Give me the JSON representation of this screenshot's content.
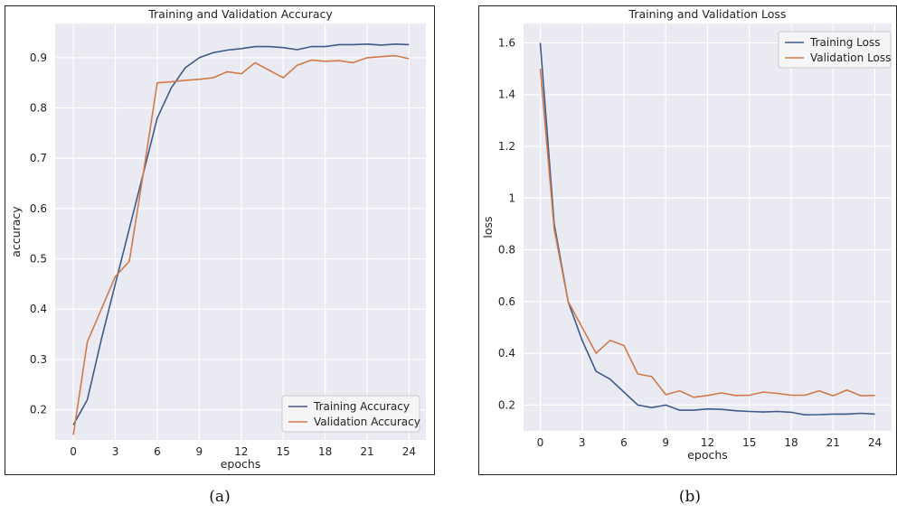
{
  "chart_data": [
    {
      "type": "line",
      "title": "Training and Validation Accuracy",
      "xlabel": "epochs",
      "ylabel": "accuracy",
      "xlim": [
        -1.3,
        25.2
      ],
      "ylim": [
        0.14,
        0.968
      ],
      "xticks": [
        0,
        3,
        6,
        9,
        12,
        15,
        18,
        21,
        24
      ],
      "yticks": [
        0.2,
        0.3,
        0.4,
        0.5,
        0.6,
        0.7,
        0.8,
        0.9
      ],
      "grid": true,
      "legend_position": "lower-right",
      "x": [
        0,
        1,
        2,
        3,
        4,
        5,
        6,
        7,
        8,
        9,
        10,
        11,
        12,
        13,
        14,
        15,
        16,
        17,
        18,
        19,
        20,
        21,
        22,
        23,
        24
      ],
      "series": [
        {
          "name": "Training Accuracy",
          "color": "#3f5a8a",
          "values": [
            0.17,
            0.22,
            0.34,
            0.45,
            0.56,
            0.67,
            0.78,
            0.84,
            0.88,
            0.9,
            0.91,
            0.915,
            0.918,
            0.922,
            0.922,
            0.92,
            0.916,
            0.922,
            0.922,
            0.926,
            0.926,
            0.927,
            0.925,
            0.927,
            0.926
          ]
        },
        {
          "name": "Validation Accuracy",
          "color": "#d07a4a",
          "values": [
            0.15,
            0.335,
            0.4,
            0.465,
            0.495,
            0.67,
            0.85,
            0.852,
            0.855,
            0.857,
            0.86,
            0.872,
            0.868,
            0.89,
            0.875,
            0.86,
            0.885,
            0.895,
            0.893,
            0.894,
            0.89,
            0.9,
            0.902,
            0.904,
            0.898
          ]
        }
      ]
    },
    {
      "type": "line",
      "title": "Training and Validation Loss",
      "xlabel": "epochs",
      "ylabel": "loss",
      "xlim": [
        -1.2,
        25.2
      ],
      "ylim": [
        0.1,
        1.675
      ],
      "xticks": [
        0,
        3,
        6,
        9,
        12,
        15,
        18,
        21,
        24
      ],
      "yticks": [
        0.2,
        0.4,
        0.6,
        0.8,
        1.0,
        1.2,
        1.4,
        1.6
      ],
      "grid": true,
      "legend_position": "top-right",
      "x": [
        0,
        1,
        2,
        3,
        4,
        5,
        6,
        7,
        8,
        9,
        10,
        11,
        12,
        13,
        14,
        15,
        16,
        17,
        18,
        19,
        20,
        21,
        22,
        23,
        24
      ],
      "series": [
        {
          "name": "Training Loss",
          "color": "#3f5a8a",
          "values": [
            1.6,
            0.9,
            0.6,
            0.45,
            0.33,
            0.3,
            0.25,
            0.2,
            0.19,
            0.2,
            0.18,
            0.18,
            0.185,
            0.183,
            0.178,
            0.175,
            0.173,
            0.175,
            0.172,
            0.162,
            0.163,
            0.165,
            0.165,
            0.168,
            0.165
          ]
        },
        {
          "name": "Validation Loss",
          "color": "#d07a4a",
          "values": [
            1.5,
            0.88,
            0.6,
            0.5,
            0.4,
            0.45,
            0.43,
            0.32,
            0.31,
            0.24,
            0.255,
            0.23,
            0.237,
            0.247,
            0.237,
            0.238,
            0.25,
            0.245,
            0.238,
            0.238,
            0.255,
            0.236,
            0.258,
            0.236,
            0.237
          ]
        }
      ]
    }
  ],
  "captions": {
    "a": "(a)",
    "b": "(b)"
  }
}
